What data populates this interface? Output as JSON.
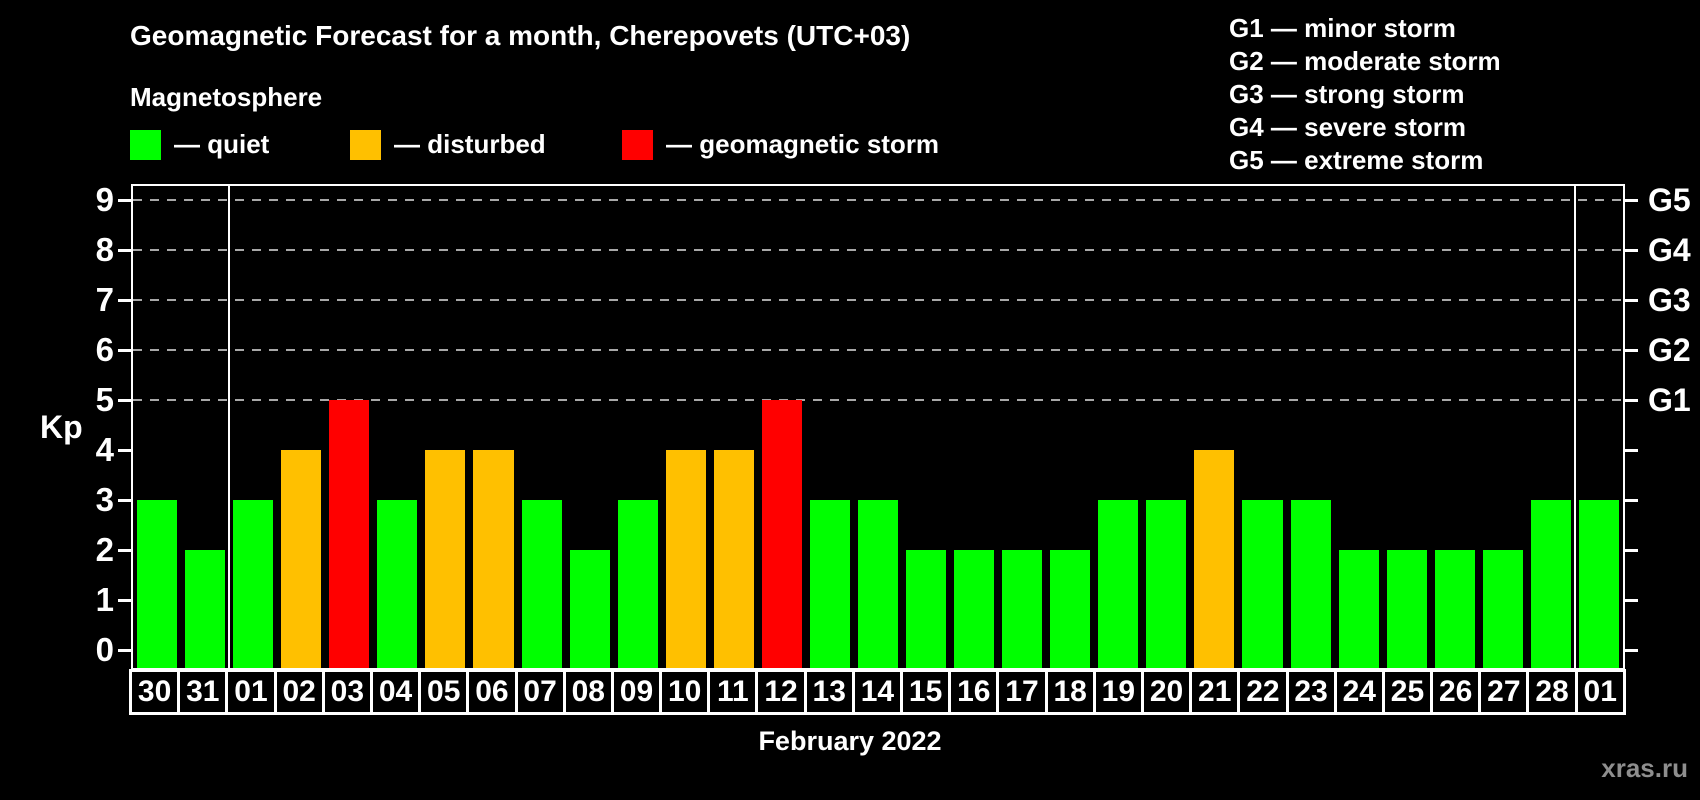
{
  "header": {
    "title": "Geomagnetic Forecast for a month, Cherepovets (UTC+03)",
    "subtitle": "Magnetosphere"
  },
  "kp_legend": [
    {
      "key": "quiet",
      "label": "— quiet",
      "color": "#00FF00"
    },
    {
      "key": "disturbed",
      "label": "— disturbed",
      "color": "#FFC000"
    },
    {
      "key": "storm",
      "label": "— geomagnetic storm",
      "color": "#FF0000"
    }
  ],
  "g_legend": [
    "G1 — minor storm",
    "G2 — moderate storm",
    "G3 — strong storm",
    "G4 — severe storm",
    "G5 — extreme storm"
  ],
  "watermark": "xras.ru",
  "chart_data": {
    "type": "bar",
    "title": "Geomagnetic Forecast for a month, Cherepovets (UTC+03)",
    "ylabel": "Kp",
    "xlabel": "February 2022",
    "ylim": [
      0,
      9.3
    ],
    "yticks": [
      "0",
      "1",
      "2",
      "3",
      "4",
      "5",
      "6",
      "7",
      "8",
      "9"
    ],
    "gridlines_at_kp": [
      5,
      6,
      7,
      8,
      9
    ],
    "right_axis": [
      {
        "kp": 5,
        "label": "G1"
      },
      {
        "kp": 6,
        "label": "G2"
      },
      {
        "kp": 7,
        "label": "G3"
      },
      {
        "kp": 8,
        "label": "G4"
      },
      {
        "kp": 9,
        "label": "G5"
      }
    ],
    "categories": [
      "30",
      "31",
      "01",
      "02",
      "03",
      "04",
      "05",
      "06",
      "07",
      "08",
      "09",
      "10",
      "11",
      "12",
      "13",
      "14",
      "15",
      "16",
      "17",
      "18",
      "19",
      "20",
      "21",
      "22",
      "23",
      "24",
      "25",
      "26",
      "27",
      "28",
      "01"
    ],
    "values": [
      3,
      2,
      3,
      4,
      5,
      3,
      4,
      4,
      3,
      2,
      3,
      4,
      4,
      5,
      3,
      3,
      2,
      2,
      2,
      2,
      3,
      3,
      4,
      3,
      3,
      2,
      2,
      2,
      2,
      3,
      3
    ],
    "month_separators_after_index": [
      1,
      29
    ],
    "colors": {
      "quiet": "#00FF00",
      "disturbed": "#FFC000",
      "storm": "#FF0000"
    },
    "color_rule": {
      "quiet_max": 3,
      "disturbed_value": 4,
      "storm_min": 5
    },
    "legend_position": "top-left",
    "grid": "dashed horizontal at Kp 5-9"
  }
}
